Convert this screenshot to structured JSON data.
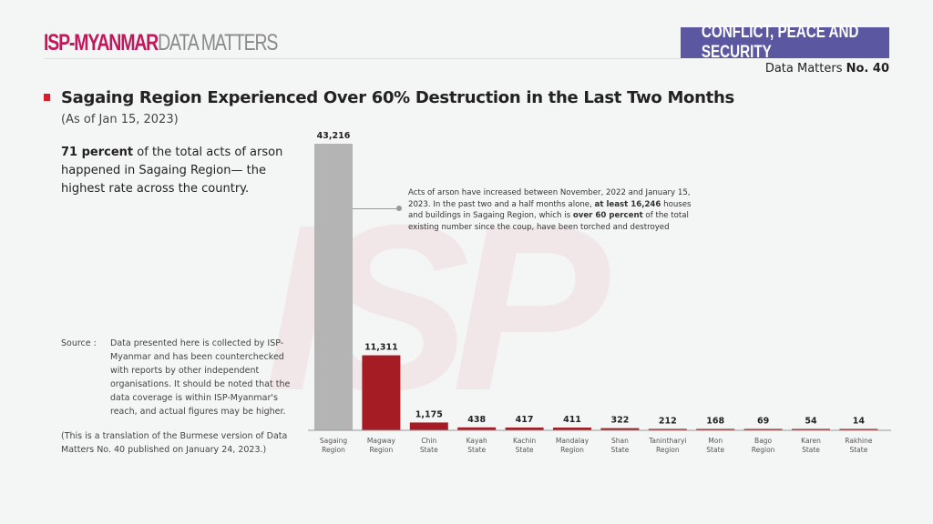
{
  "header": {
    "brand": "ISP-MYANMAR",
    "brand_sub": "DATA MATTERS",
    "category": "CONFLICT, PEACE AND SECURITY",
    "issue_prefix": "Data Matters",
    "issue_no": "No. 40",
    "watermark": "ISP"
  },
  "title": "Sagaing Region Experienced Over 60% Destruction in the Last Two Months",
  "as_of": "(As of Jan 15, 2023)",
  "lead": {
    "bold": "71 percent",
    "text": " of the total acts of arson happened in Sagaing Region— the highest rate across the country."
  },
  "source": {
    "label": "Source :",
    "text": "Data presented here is collected by ISP-Myanmar and has been counterchecked with reports by other independent organisations. It should be noted that the data coverage is within ISP-Myanmar's reach, and actual figures may be higher."
  },
  "translation_note": "(This is a translation of the Burmese version of Data Matters No. 40 published on January 24, 2023.)",
  "annotation": {
    "t1": "Acts of arson have increased between November, 2022 and January 15, 2023. In the past two and a half months alone, ",
    "b1": "at least 16,246",
    "t2": " houses and buildings in Sagaing Region, which is ",
    "b2": "over 60 percent",
    "t3": " of the total existing number since the coup,  have been torched and destroyed"
  },
  "colors": {
    "highlight": "#b4b4b4",
    "bar": "#a51c24",
    "badge": "#5b57a0",
    "brand": "#c2185b"
  },
  "chart_data": {
    "type": "bar",
    "categories": [
      [
        "Sagaing",
        "Region"
      ],
      [
        "Magway",
        "Region"
      ],
      [
        "Chin",
        "State"
      ],
      [
        "Kayah",
        "State"
      ],
      [
        "Kachin",
        "State"
      ],
      [
        "Mandalay",
        "Region"
      ],
      [
        "Shan",
        "State"
      ],
      [
        "Tanintharyi",
        "Region"
      ],
      [
        "Mon",
        "State"
      ],
      [
        "Bago",
        "Region"
      ],
      [
        "Karen",
        "State"
      ],
      [
        "Rakhine",
        "State"
      ]
    ],
    "values": [
      43216,
      11311,
      1175,
      438,
      417,
      411,
      322,
      212,
      168,
      69,
      54,
      14
    ],
    "labels": [
      "43,216",
      "11,311",
      "1,175",
      "438",
      "417",
      "411",
      "322",
      "212",
      "168",
      "69",
      "54",
      "14"
    ],
    "ylim": [
      0,
      43216
    ],
    "grid": false,
    "title": "",
    "xlabel": "",
    "ylabel": ""
  }
}
